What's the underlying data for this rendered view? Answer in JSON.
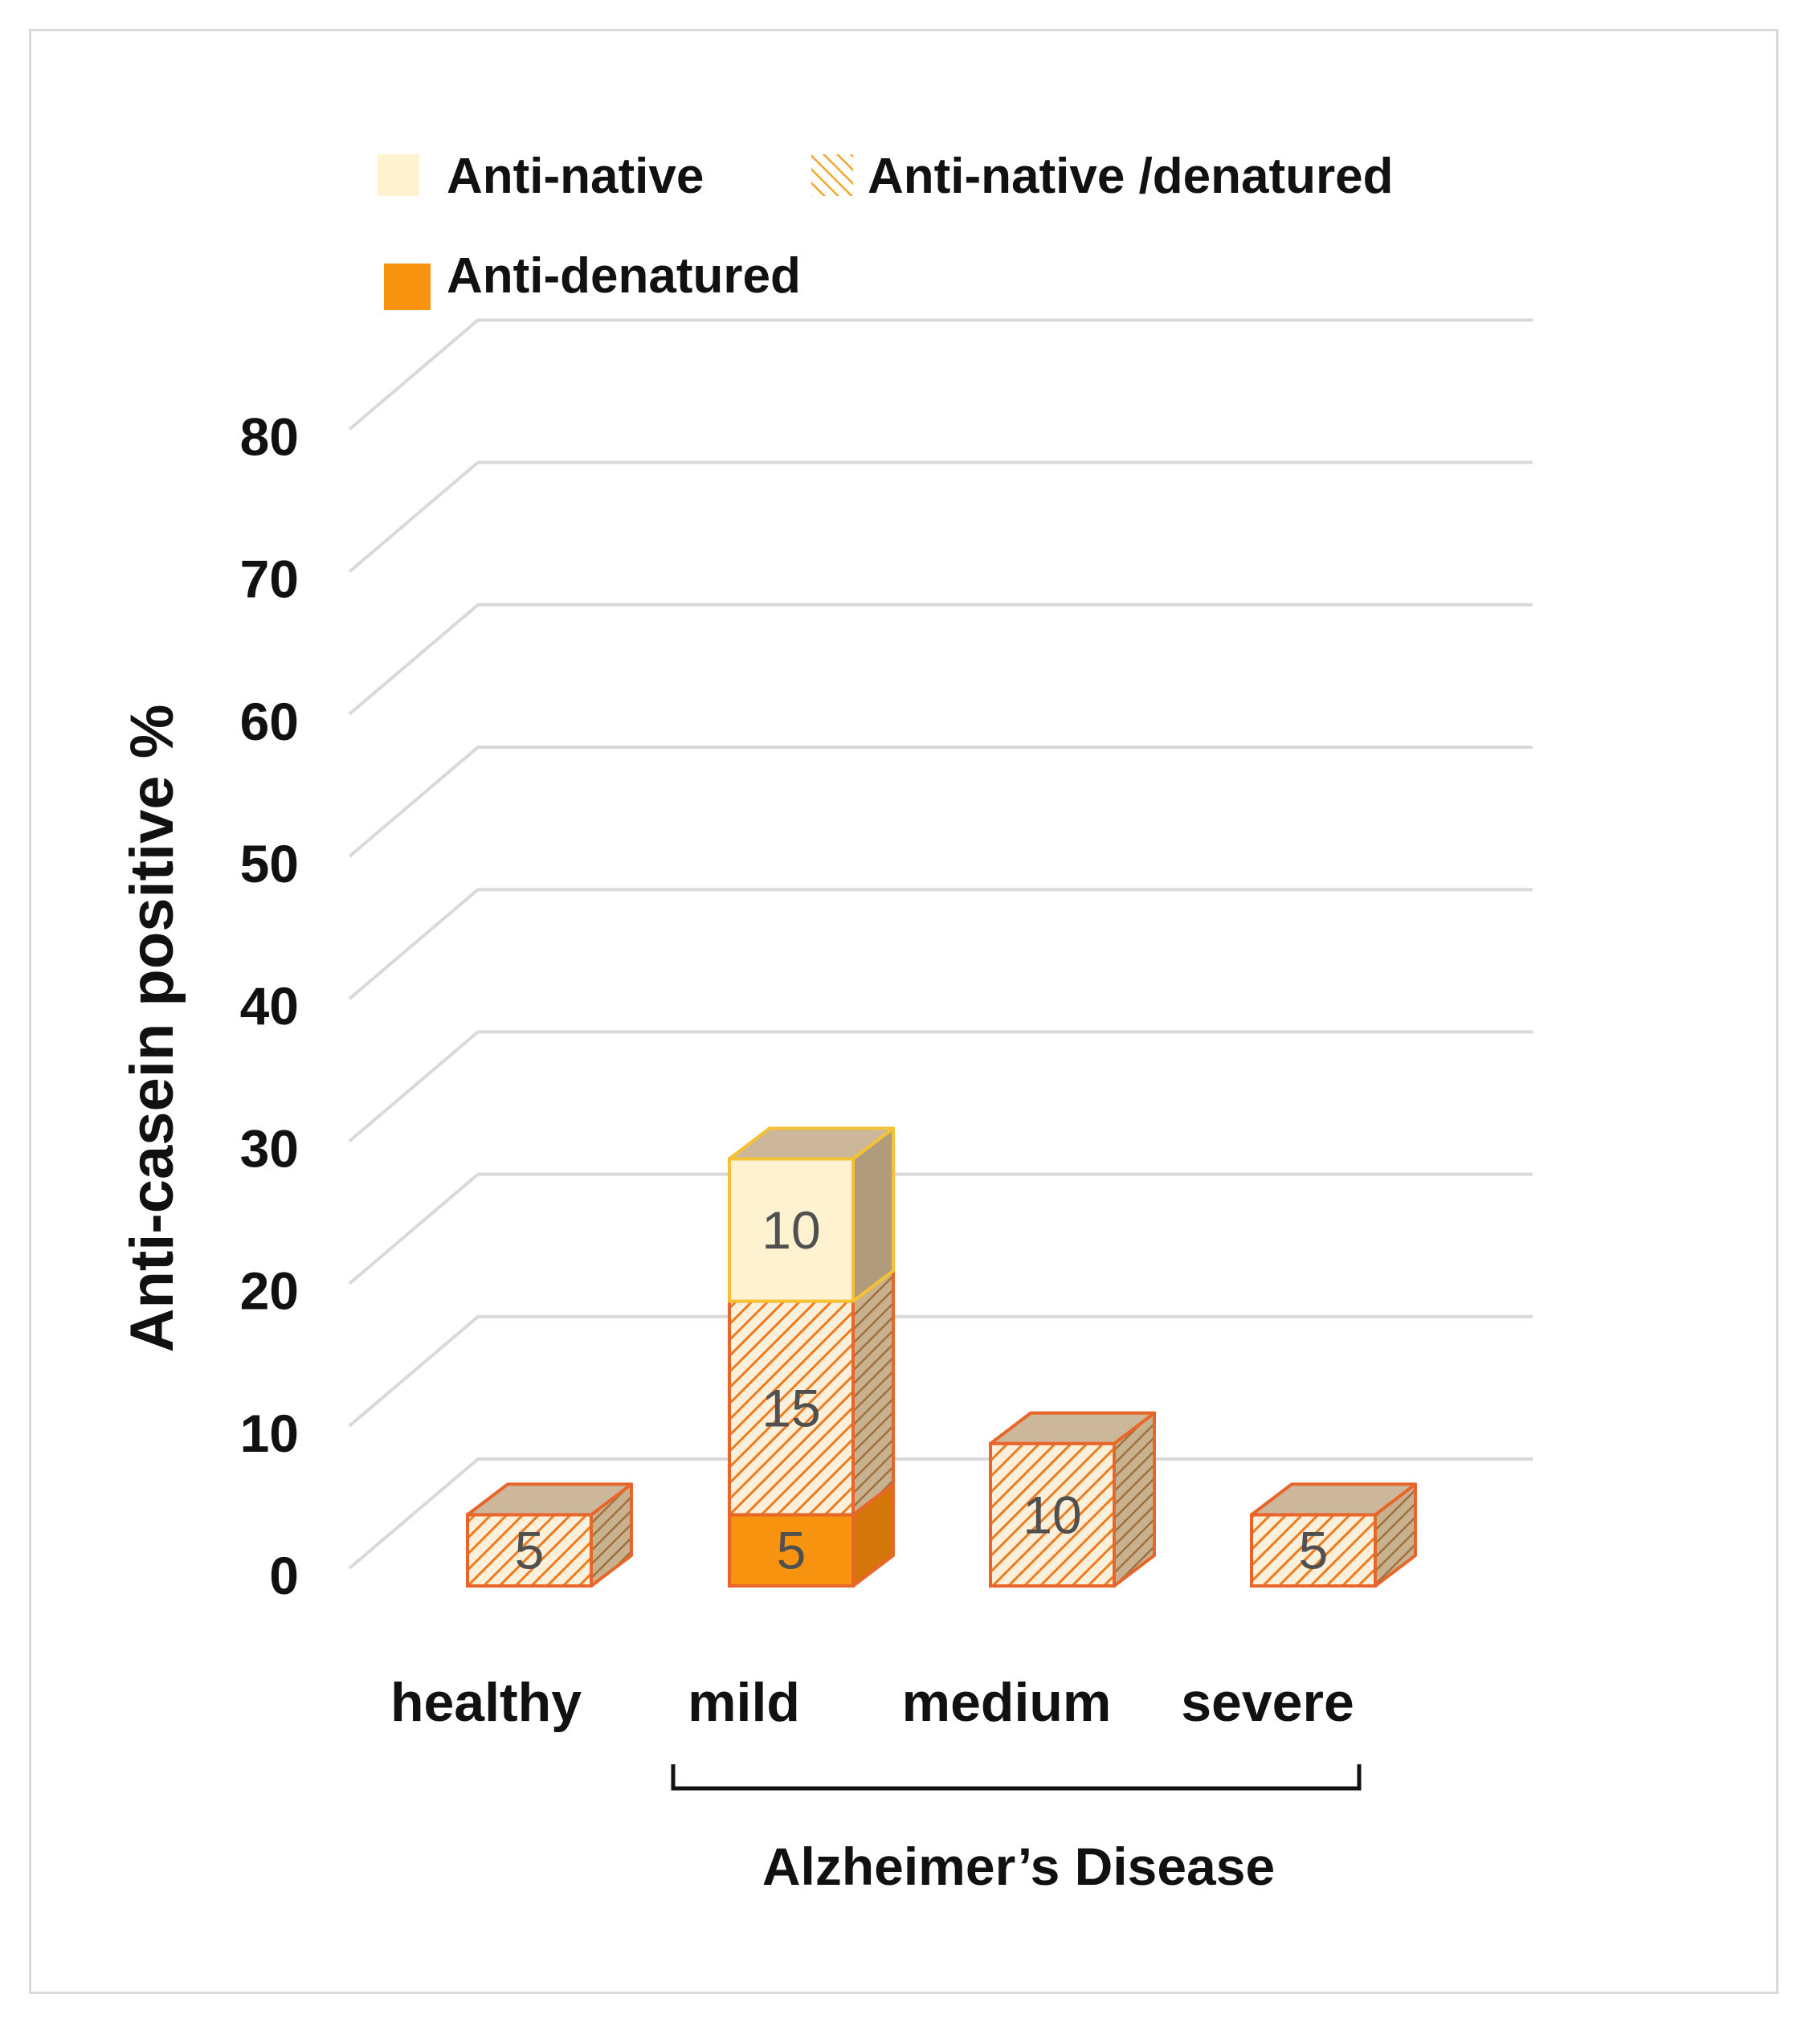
{
  "chart_data": {
    "type": "bar",
    "stacked": true,
    "three_d": true,
    "categories": [
      "healthy",
      "mild",
      "medium",
      "severe"
    ],
    "series": [
      {
        "name": "Anti-denatured",
        "values": [
          0,
          5,
          0,
          0
        ],
        "color": "#f7930e",
        "pattern": "solid"
      },
      {
        "name": "Anti-native /denatured",
        "values": [
          5,
          15,
          10,
          5
        ],
        "color": "#f6a12a",
        "pattern": "hatch"
      },
      {
        "name": "Anti-native",
        "values": [
          0,
          10,
          0,
          0
        ],
        "color": "#fef2d1",
        "pattern": "solid"
      }
    ],
    "data_labels": [
      {
        "category": "healthy",
        "series": "Anti-native /denatured",
        "text": "5"
      },
      {
        "category": "mild",
        "series": "Anti-denatured",
        "text": "5"
      },
      {
        "category": "mild",
        "series": "Anti-native /denatured",
        "text": "15"
      },
      {
        "category": "mild",
        "series": "Anti-native",
        "text": "10"
      },
      {
        "category": "medium",
        "series": "Anti-native /denatured",
        "text": "10"
      },
      {
        "category": "severe",
        "series": "Anti-native /denatured",
        "text": "5"
      }
    ],
    "legend_order": [
      "Anti-native",
      "Anti-native /denatured",
      "Anti-denatured"
    ],
    "legend_position": "top-left",
    "ylabel": "Anti-casein positive %",
    "xlabel": "",
    "ylim": [
      0,
      80
    ],
    "yticks": [
      0,
      10,
      20,
      30,
      40,
      50,
      60,
      70,
      80
    ],
    "grid": true,
    "group_bracket": {
      "label": "Alzheimer’s Disease",
      "from": "mild",
      "to": "severe"
    }
  },
  "colors": {
    "anti_native_border": "#f4c234",
    "bar_border": "#e8662a",
    "top_face": "#cdb79a",
    "side_face": "#b09b7c",
    "hatch_line": "#ec7c1e",
    "grid": "#d9d9d9"
  }
}
